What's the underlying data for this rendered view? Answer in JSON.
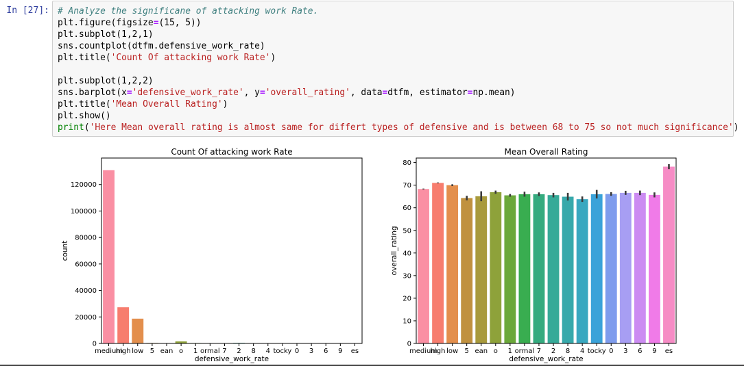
{
  "cell": {
    "prompt": "In [27]:",
    "code": {
      "line1": "# Analyze the significane of attacking work Rate.",
      "line2a": "plt.figure(figsize",
      "line2b": "=",
      "line2c": "(15, 5))",
      "line3": "plt.subplot(1,2,1)",
      "line4": "sns.countplot(dtfm.defensive_work_rate)",
      "line5a": "plt.title(",
      "line5b": "'Count Of attacking work Rate'",
      "line5c": ")",
      "line7": "plt.subplot(1,2,2)",
      "line8a": "sns.barplot(x",
      "line8b": "=",
      "line8c": "'defensive_work_rate'",
      "line8d": ", y",
      "line8e": "=",
      "line8f": "'overall_rating'",
      "line8g": ", data",
      "line8h": "=",
      "line8i": "dtfm, estimator",
      "line8j": "=",
      "line8k": "np.mean)",
      "line9a": "plt.title(",
      "line9b": "'Mean Overall Rating'",
      "line9c": ")",
      "line10": "plt.show()",
      "line11a": "print",
      "line11b": "(",
      "line11c": "'Here Mean overall rating is almost same for differt types of defensive and is between 68 to 75 so not much significance'",
      "line11d": ")"
    }
  },
  "chart_data": [
    {
      "type": "bar",
      "title": "Count Of attacking work Rate",
      "xlabel": "defensive_work_rate",
      "ylabel": "count",
      "categories": [
        "medium",
        "high",
        "low",
        "5",
        "ean",
        "o",
        "1",
        "ormal",
        "7",
        "2",
        "8",
        "4",
        "tocky",
        "0",
        "3",
        "6",
        "9",
        "es"
      ],
      "values": [
        130800,
        27300,
        18700,
        350,
        60,
        1500,
        300,
        250,
        220,
        400,
        130,
        100,
        90,
        70,
        200,
        110,
        80,
        60
      ],
      "yticks": [
        0,
        20000,
        40000,
        60000,
        80000,
        100000,
        120000
      ],
      "ylim": [
        0,
        140000
      ],
      "grid": false
    },
    {
      "type": "bar",
      "title": "Mean Overall Rating",
      "xlabel": "defensive_work_rate",
      "ylabel": "overall_rating",
      "categories": [
        "medium",
        "high",
        "low",
        "5",
        "ean",
        "o",
        "1",
        "ormal",
        "7",
        "2",
        "8",
        "4",
        "tocky",
        "0",
        "3",
        "6",
        "9",
        "es"
      ],
      "values": [
        68.3,
        71.0,
        70.0,
        64.3,
        65.1,
        66.9,
        65.5,
        66.0,
        66.0,
        65.6,
        64.9,
        63.8,
        66.0,
        66.1,
        66.6,
        66.6,
        65.7,
        78.2
      ],
      "errors": [
        0.2,
        0.2,
        0.4,
        1.0,
        2.2,
        0.7,
        0.6,
        1.1,
        0.8,
        1.0,
        1.7,
        1.2,
        1.9,
        0.8,
        0.9,
        1.0,
        1.1,
        1.1
      ],
      "yticks": [
        0,
        10,
        20,
        30,
        40,
        50,
        60,
        70,
        80
      ],
      "ylim": [
        0,
        82
      ],
      "grid": false
    }
  ],
  "palette": [
    "#fa8fa3",
    "#f77d6e",
    "#e38f4d",
    "#c0913f",
    "#a89a3c",
    "#8ea23a",
    "#6ba83a",
    "#39ad50",
    "#35ab7f",
    "#36aa98",
    "#37a9ab",
    "#39a8c0",
    "#3aa2d9",
    "#7e9ced",
    "#a79ef3",
    "#cc8cf2",
    "#f07be8",
    "#f68cc5"
  ]
}
